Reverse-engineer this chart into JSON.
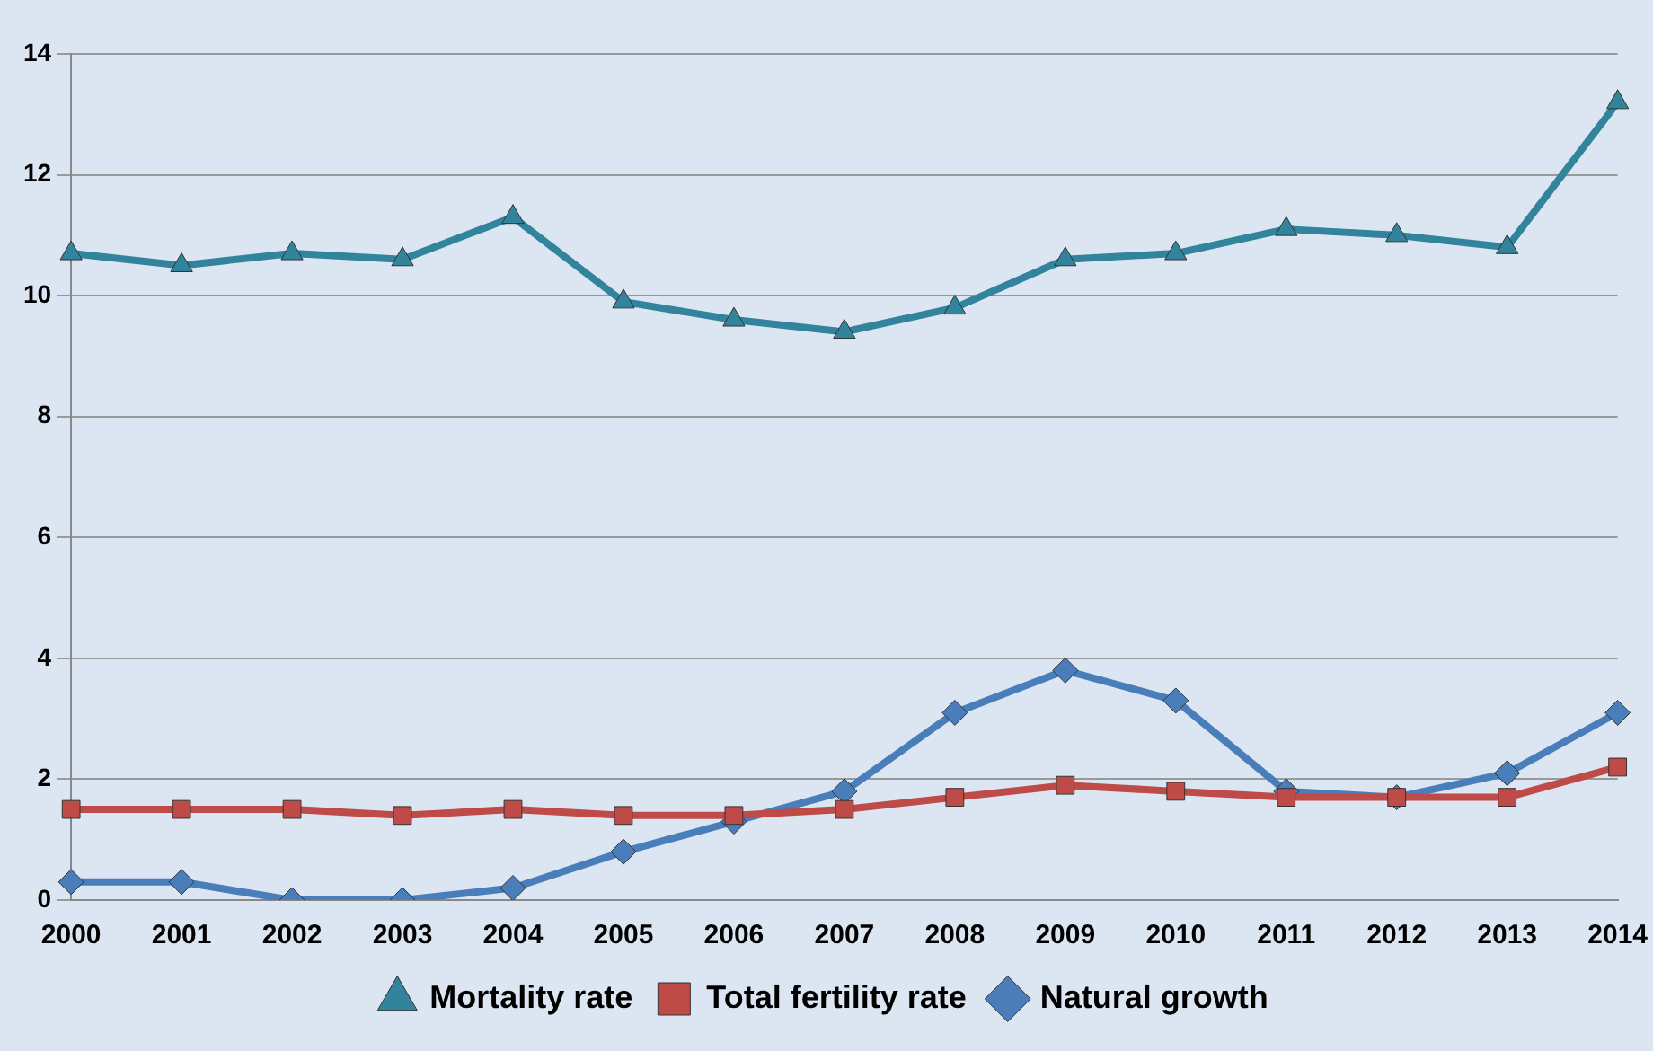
{
  "chart_data": {
    "type": "line",
    "categories": [
      "2000",
      "2001",
      "2002",
      "2003",
      "2004",
      "2005",
      "2006",
      "2007",
      "2008",
      "2009",
      "2010",
      "2011",
      "2012",
      "2013",
      "2014"
    ],
    "series": [
      {
        "name": "Natural growth",
        "color": "#4a7ebb",
        "marker": "diamond",
        "values": [
          0.3,
          0.3,
          0,
          0,
          0.2,
          0.8,
          1.3,
          1.8,
          3.1,
          3.8,
          3.3,
          1.8,
          1.7,
          2.1,
          3.1
        ]
      },
      {
        "name": "Total fertility rate",
        "color": "#be4b48",
        "marker": "square",
        "values": [
          1.5,
          1.5,
          1.5,
          1.4,
          1.5,
          1.4,
          1.4,
          1.5,
          1.7,
          1.9,
          1.8,
          1.7,
          1.7,
          1.7,
          2.2
        ]
      },
      {
        "name": "Mortality rate",
        "color": "#31849b",
        "marker": "triangle",
        "values": [
          10.7,
          10.5,
          10.7,
          10.6,
          11.3,
          9.9,
          9.6,
          9.4,
          9.8,
          10.6,
          10.7,
          11.1,
          11.0,
          10.8,
          13.2
        ]
      }
    ],
    "ylim": [
      0,
      14
    ],
    "yticks": [
      0,
      2,
      4,
      6,
      8,
      10,
      12,
      14
    ],
    "grid": "y",
    "legend": "bottom"
  }
}
